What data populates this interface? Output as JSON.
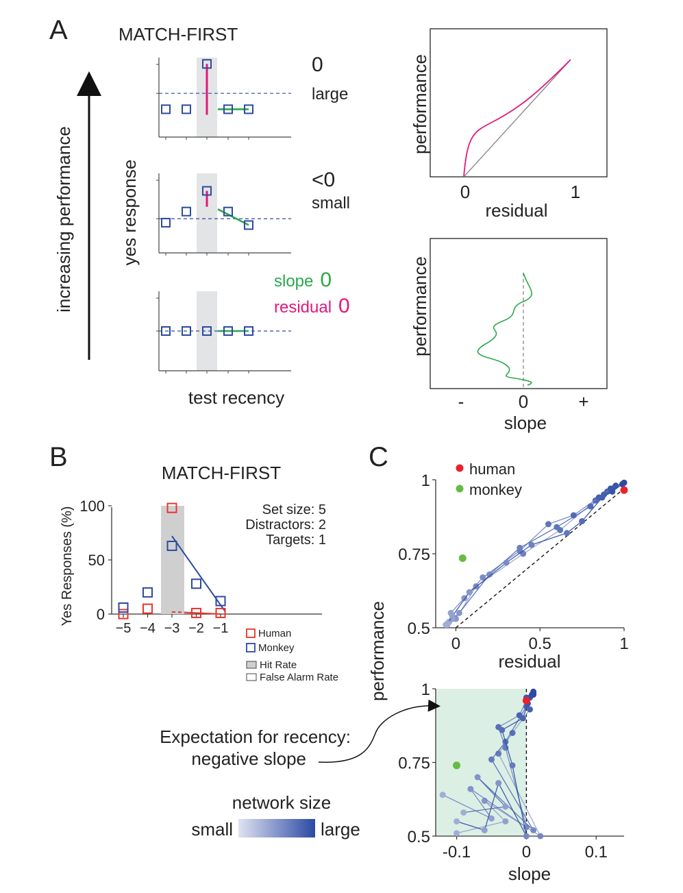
{
  "panel_a": {
    "label": "A",
    "title": "MATCH-FIRST",
    "y_arrow_label": "increasing performance",
    "ylabel": "yes response",
    "xlabel": "test recency",
    "colors": {
      "slope": "#2aa84a",
      "residual": "#e2187a",
      "marker": "#2b4aa0",
      "shade": "#e3e4e6"
    },
    "schematics": [
      {
        "slope_value": "0",
        "residual_value": "large",
        "points": [
          0.35,
          0.35,
          0.92,
          0.35,
          0.35
        ],
        "ref": 0.55,
        "slope_pts": [
          0.35,
          0.35
        ]
      },
      {
        "slope_value": "<0",
        "residual_value": "small",
        "points": [
          0.38,
          0.52,
          0.78,
          0.52,
          0.35
        ],
        "ref": 0.43,
        "slope_pts": [
          0.55,
          0.35
        ]
      },
      {
        "slope_value": "0",
        "residual_value": "0",
        "slope_prefix": "slope",
        "residual_prefix": "residual",
        "points": [
          0.5,
          0.5,
          0.5,
          0.5,
          0.5
        ],
        "ref": 0.5,
        "slope_pts": [
          0.5,
          0.5
        ]
      }
    ],
    "right_top": {
      "ylabel": "performance",
      "xlabel": "residual",
      "ticks": [
        "0",
        "1"
      ]
    },
    "right_bottom": {
      "ylabel": "performance",
      "xlabel": "slope",
      "ticks": [
        "-",
        "0",
        "+"
      ]
    }
  },
  "panel_b": {
    "label": "B"
  },
  "panel_c": {
    "label": "C",
    "legend": [
      {
        "label": "human",
        "color": "#e8232a"
      },
      {
        "label": "monkey",
        "color": "#66bb44"
      }
    ],
    "ylabel": "performance",
    "top_xlabel": "residual",
    "bottom_xlabel": "slope",
    "colorbar": {
      "title": "network size",
      "min_label": "small",
      "max_label": "large",
      "from": "#dfe2f1",
      "to": "#2c4aa4"
    },
    "annotation": [
      "Expectation for recency:",
      "negative slope"
    ]
  },
  "chart_data": [
    {
      "type": "scatter",
      "title": "MATCH-FIRST",
      "xlabel": "",
      "ylabel": "Yes Responses (%)",
      "categories": [
        "−5",
        "−4",
        "−3",
        "−2",
        "−1"
      ],
      "x": [
        -5,
        -4,
        -3,
        -2,
        -1
      ],
      "ylim": [
        0,
        100
      ],
      "yticks": [
        "0",
        "50",
        "100"
      ],
      "hit_rate_position": -3,
      "series": [
        {
          "name": "Human",
          "color": "#e8352b",
          "values": [
            0,
            5,
            98,
            1,
            1
          ]
        },
        {
          "name": "Monkey",
          "color": "#2b4aa0",
          "values": [
            6,
            20,
            63,
            28,
            12
          ]
        }
      ],
      "fit_lines": [
        {
          "series": "Monkey",
          "from": [
            -3,
            72
          ],
          "to": [
            -0.8,
            2
          ]
        },
        {
          "series": "Human",
          "from": [
            -3,
            2
          ],
          "to": [
            -1,
            0
          ],
          "dashed_until": -2.5
        }
      ],
      "info": [
        "Set size:  5",
        "Distractors:  2",
        "Targets:  1"
      ],
      "legend": [
        "Human",
        "Monkey",
        "Hit Rate",
        "False Alarm Rate"
      ]
    },
    {
      "type": "scatter",
      "xlabel": "residual",
      "ylabel": "performance",
      "xlim": [
        -0.12,
        1.0
      ],
      "ylim": [
        0.5,
        1.0
      ],
      "xticks": [
        "0",
        "0.5",
        "1"
      ],
      "yticks": [
        "0.5",
        "0.75",
        "1"
      ],
      "series": [
        {
          "name": "human",
          "color": "#e8232a",
          "x": [
            1.0
          ],
          "y": [
            0.965
          ]
        },
        {
          "name": "monkey",
          "color": "#66bb44",
          "x": [
            0.04
          ],
          "y": [
            0.735
          ]
        }
      ],
      "network_paths": [
        {
          "x": [
            -0.05,
            -0.04,
            0.0,
            0.12,
            0.4,
            0.62,
            0.83,
            0.9,
            0.93,
            1.0
          ],
          "y": [
            0.51,
            0.52,
            0.53,
            0.64,
            0.75,
            0.83,
            0.93,
            0.96,
            0.97,
            0.99
          ]
        },
        {
          "x": [
            -0.04,
            -0.03,
            0.05,
            0.16,
            0.38,
            0.55,
            0.7,
            0.85,
            0.92,
            0.99
          ],
          "y": [
            0.52,
            0.55,
            0.6,
            0.67,
            0.76,
            0.85,
            0.88,
            0.94,
            0.97,
            0.985
          ]
        },
        {
          "x": [
            -0.06,
            -0.02,
            0.02,
            0.2,
            0.38,
            0.6,
            0.8,
            0.88,
            0.95,
            1.0
          ],
          "y": [
            0.51,
            0.53,
            0.55,
            0.68,
            0.77,
            0.84,
            0.91,
            0.95,
            0.98,
            0.99
          ]
        },
        {
          "x": [
            -0.05,
            -0.02,
            0.08,
            0.3,
            0.45,
            0.66,
            0.75,
            0.87,
            0.93,
            0.99
          ],
          "y": [
            0.515,
            0.54,
            0.62,
            0.72,
            0.78,
            0.82,
            0.86,
            0.94,
            0.96,
            0.985
          ]
        }
      ],
      "reference_line": {
        "from": [
          0,
          0.5
        ],
        "to": [
          1,
          0.97
        ]
      }
    },
    {
      "type": "scatter",
      "xlabel": "slope",
      "ylabel": "performance",
      "xlim": [
        -0.13,
        0.14
      ],
      "ylim": [
        0.5,
        1.0
      ],
      "xticks": [
        "-0.1",
        "0",
        "0.1"
      ],
      "yticks": [
        "0.5",
        "0.75",
        "1"
      ],
      "series": [
        {
          "name": "human",
          "color": "#e8232a",
          "x": [
            0.0
          ],
          "y": [
            0.96
          ]
        },
        {
          "name": "monkey",
          "color": "#66bb44",
          "x": [
            -0.1
          ],
          "y": [
            0.74
          ]
        }
      ],
      "network_paths": [
        {
          "x": [
            -0.1,
            -0.03,
            -0.06,
            0.02,
            -0.04,
            -0.02,
            0.005,
            0.0,
            0.01
          ],
          "y": [
            0.51,
            0.55,
            0.62,
            0.5,
            0.78,
            0.85,
            0.93,
            0.97,
            0.99
          ]
        },
        {
          "x": [
            -0.12,
            -0.05,
            -0.08,
            0.0,
            -0.03,
            -0.04,
            -0.01,
            0.0,
            0.01
          ],
          "y": [
            0.64,
            0.56,
            0.66,
            0.53,
            0.8,
            0.87,
            0.91,
            0.96,
            0.98
          ]
        },
        {
          "x": [
            -0.09,
            -0.03,
            -0.07,
            0.01,
            -0.05,
            -0.03,
            0.0,
            0.005,
            0.01
          ],
          "y": [
            0.58,
            0.6,
            0.7,
            0.52,
            0.76,
            0.82,
            0.94,
            0.97,
            0.985
          ]
        },
        {
          "x": [
            -0.1,
            -0.06,
            -0.04,
            0.0,
            -0.02,
            -0.035,
            -0.005,
            0.002,
            0.008
          ],
          "y": [
            0.55,
            0.52,
            0.68,
            0.5,
            0.74,
            0.86,
            0.9,
            0.95,
            0.98
          ]
        }
      ],
      "reference_line": {
        "x": 0
      }
    }
  ]
}
